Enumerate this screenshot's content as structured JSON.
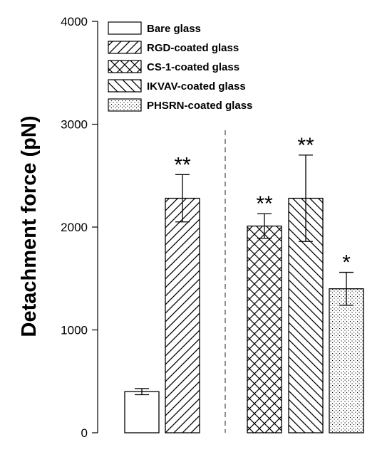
{
  "chart_data": {
    "type": "bar",
    "title": "",
    "xlabel": "",
    "ylabel": "Detachment force (pN)",
    "ylim": [
      0,
      4000
    ],
    "yticks": [
      0,
      1000,
      2000,
      3000,
      4000
    ],
    "grid": false,
    "legend_position": "top-left",
    "divider": "dashed vertical line between Bare/RGD group and CS-1/IKVAV/PHSRN group",
    "series": [
      {
        "name": "Bare glass",
        "value": 400,
        "error": 30,
        "pattern": "none",
        "annotation": ""
      },
      {
        "name": "RGD-coated glass",
        "value": 2280,
        "error": 230,
        "pattern": "forward-diagonal",
        "annotation": "**"
      },
      {
        "name": "CS-1-coated glass",
        "value": 2010,
        "error": 120,
        "pattern": "crosshatch",
        "annotation": "**"
      },
      {
        "name": "IKVAV-coated glass",
        "value": 2280,
        "error": 420,
        "pattern": "back-diagonal",
        "annotation": "**"
      },
      {
        "name": "PHSRN-coated glass",
        "value": 1400,
        "error": 160,
        "pattern": "dots",
        "annotation": "*"
      }
    ]
  }
}
